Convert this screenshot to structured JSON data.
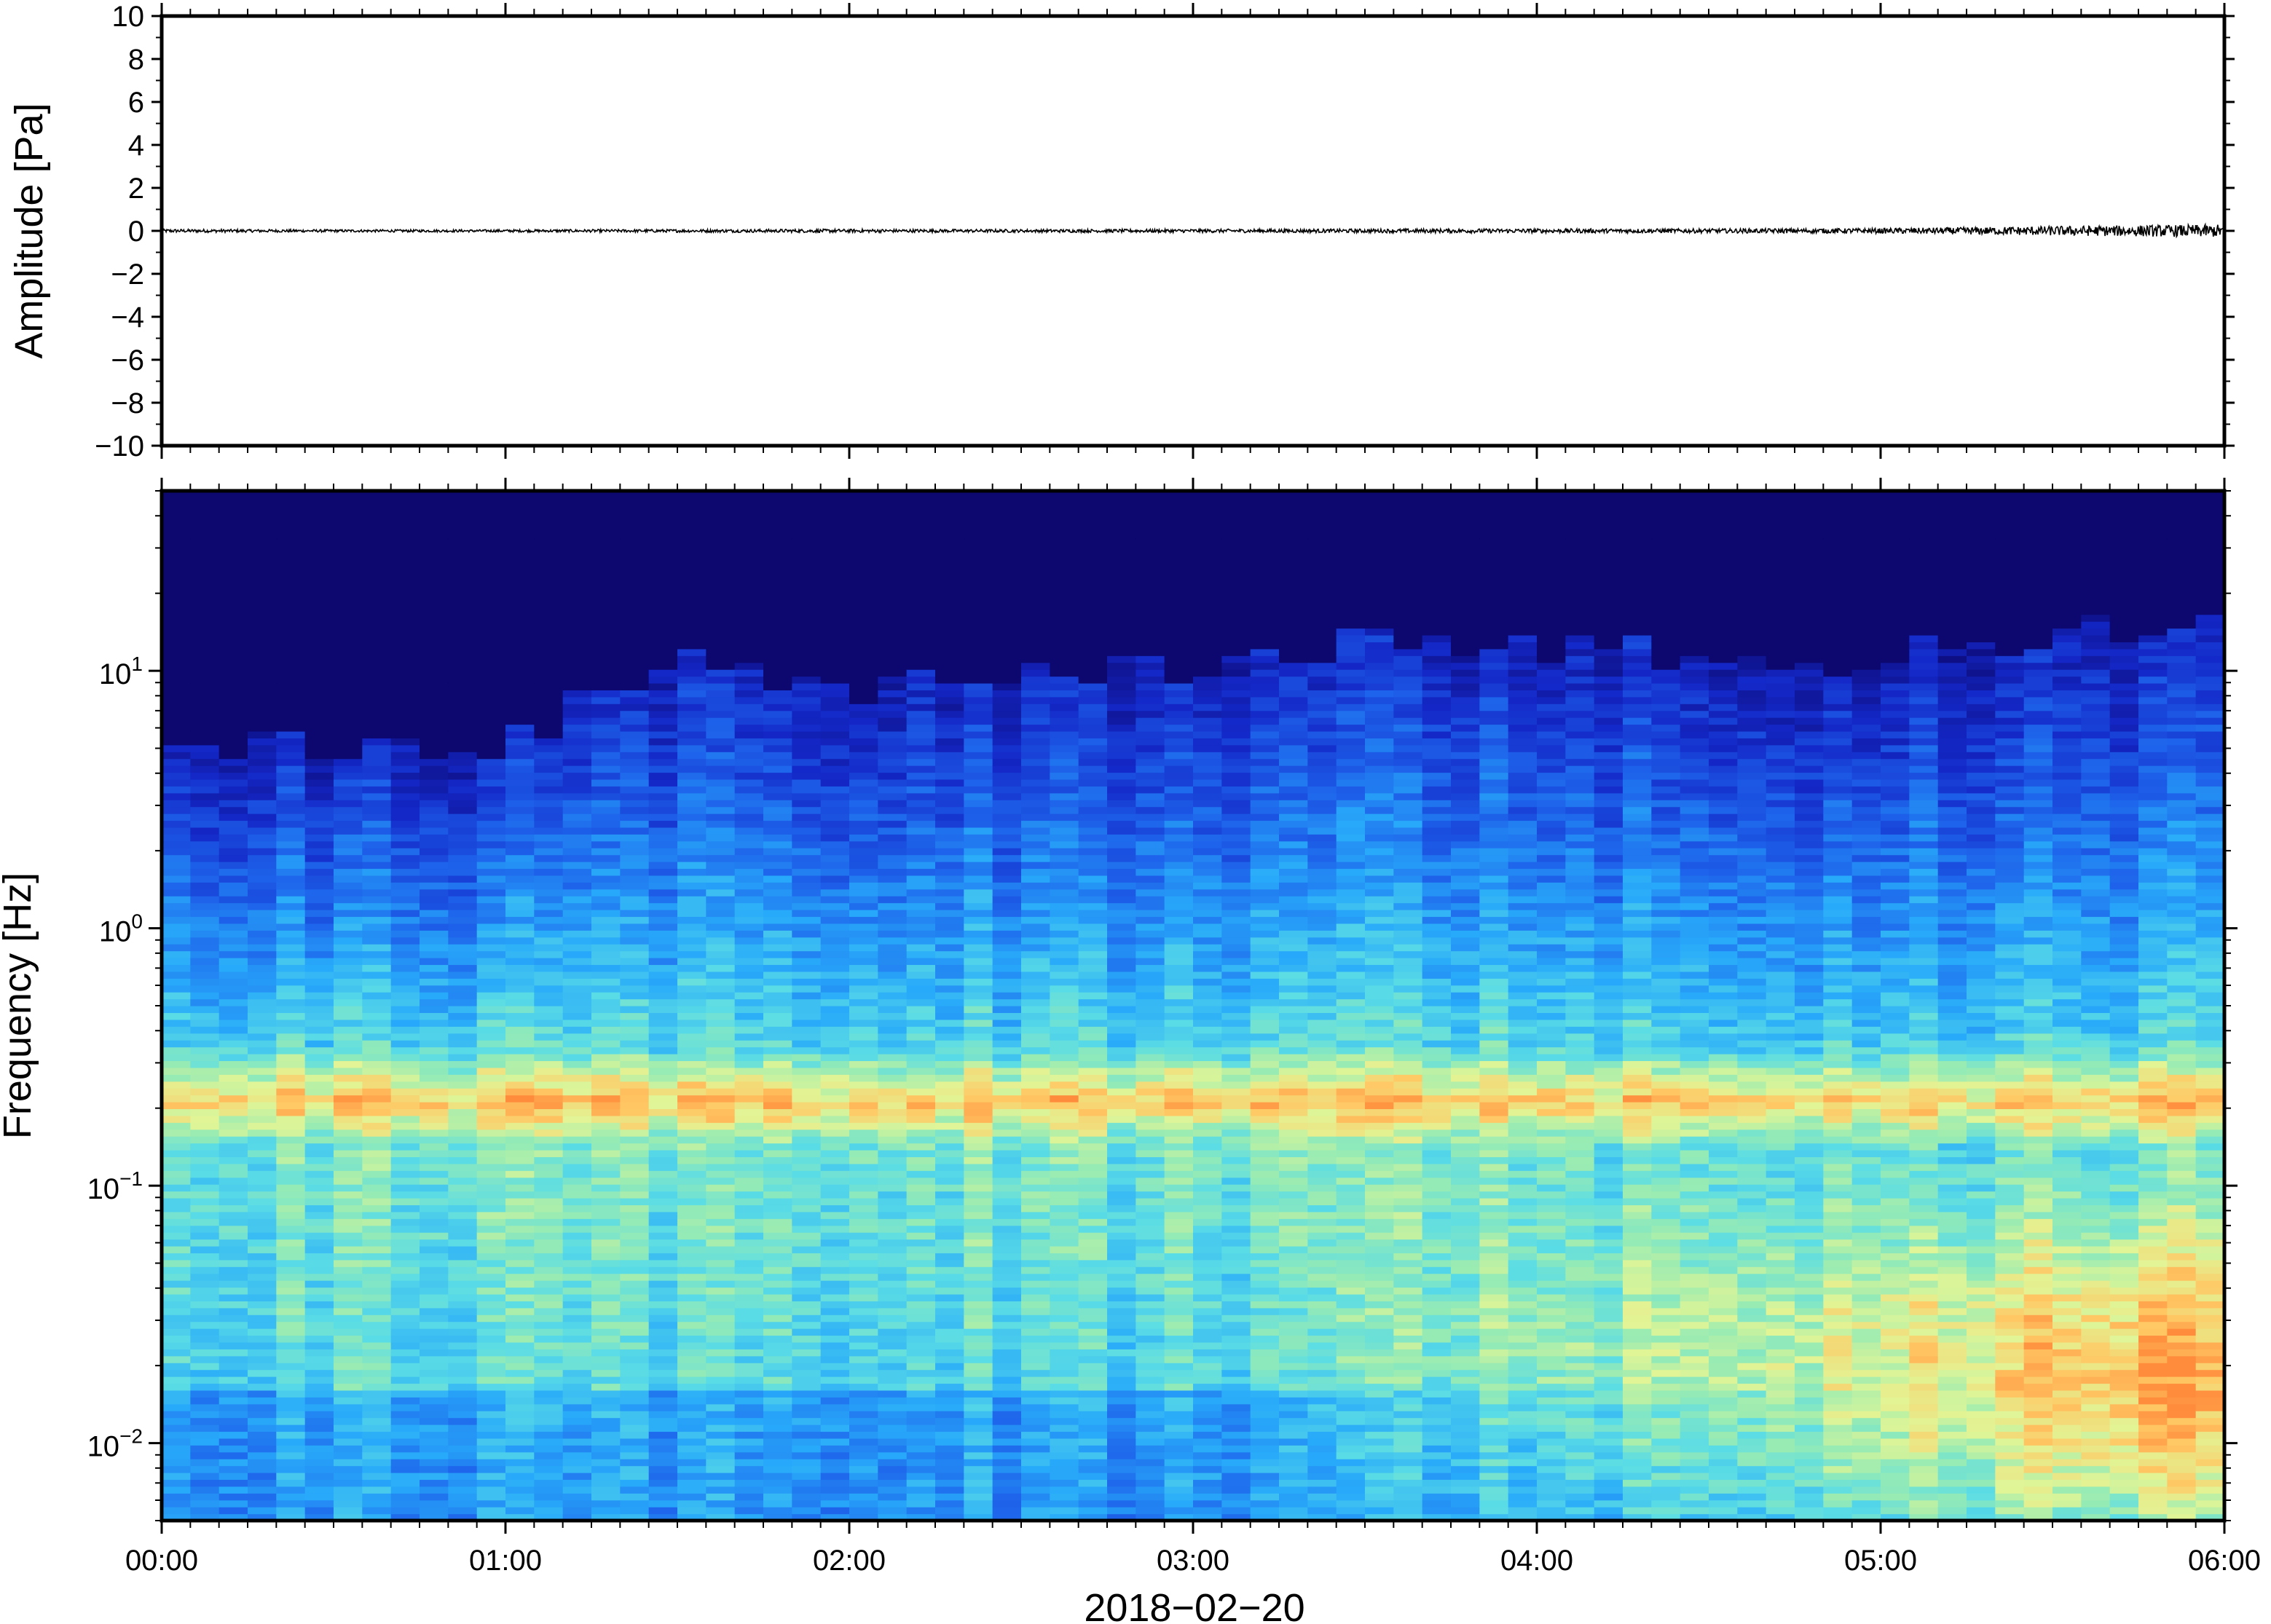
{
  "chart_data": [
    {
      "type": "line",
      "ylabel": "Amplitude [Pa]",
      "ylim": [
        -10,
        10
      ],
      "y_ticks": [
        "10",
        "8",
        "6",
        "4",
        "2",
        "0",
        "−2",
        "−4",
        "−6",
        "−8",
        "−10"
      ],
      "y_tick_values": [
        10,
        8,
        6,
        4,
        2,
        0,
        -2,
        -4,
        -6,
        -8,
        -10
      ],
      "xlim_hours": [
        0,
        6
      ],
      "series": [
        {
          "x_hours": [
            0,
            0.5,
            1,
            1.5,
            2,
            2.5,
            3,
            3.5,
            4,
            4.5,
            5,
            5.5,
            6
          ],
          "envelope": [
            0.08,
            0.06,
            0.06,
            0.07,
            0.08,
            0.07,
            0.08,
            0.09,
            0.1,
            0.1,
            0.12,
            0.22,
            0.3
          ]
        }
      ],
      "colors": {
        "line": "#000000"
      },
      "grid": false
    },
    {
      "type": "heatmap",
      "ylabel": "Frequency [Hz]",
      "xlabel": "2018−02−20",
      "yscale": "log",
      "ylim": [
        0.005,
        50
      ],
      "y_tick_values": [
        0.01,
        0.1,
        1,
        10
      ],
      "y_ticks": [
        {
          "base": "10",
          "exp": "−2"
        },
        {
          "base": "10",
          "exp": "−1"
        },
        {
          "base": "10",
          "exp": "0"
        },
        {
          "base": "10",
          "exp": "1"
        }
      ],
      "x_ticks": [
        "00:00",
        "01:00",
        "02:00",
        "03:00",
        "04:00",
        "05:00",
        "06:00"
      ],
      "xlim_hours": [
        0,
        6
      ],
      "colormap": "jet",
      "colors": {
        "background": "#0c0870",
        "low": "#1f5ce6",
        "mid": "#5ee0e6",
        "high": "#ffa040"
      },
      "microbarom_band_hz": [
        0.15,
        0.3
      ],
      "time_columns": 72,
      "upper_energy_limit_hz_by_hour": [
        [
          0,
          5
        ],
        [
          1,
          5
        ],
        [
          1.5,
          12
        ],
        [
          2,
          9
        ],
        [
          3,
          10
        ],
        [
          3.5,
          14
        ],
        [
          4,
          12
        ],
        [
          5,
          11
        ],
        [
          5.5,
          14
        ],
        [
          6,
          15
        ]
      ],
      "low_freq_energy_increase_after_hours": 3.2,
      "grid": false
    }
  ]
}
